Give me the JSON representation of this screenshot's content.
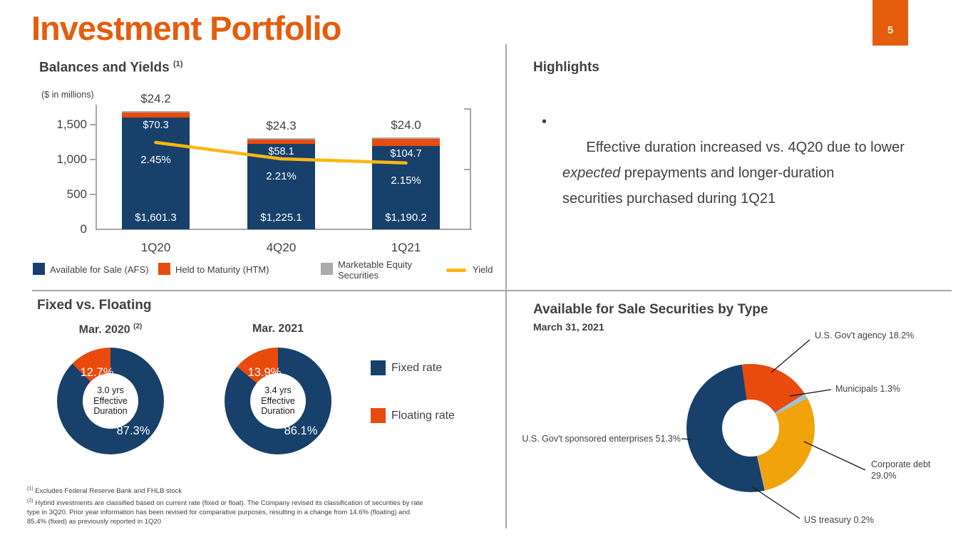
{
  "header": {
    "title": "Investment Portfolio",
    "page_number": "5"
  },
  "colors": {
    "accent": "#E45D0D",
    "navy": "#17406B",
    "series_orange": "#E84B0D",
    "gray_cap": "#ABABAB",
    "gold": "#FFB612",
    "pie_gold": "#F0A30A",
    "light_blue": "#9CC3DE",
    "treasury_gray": "#BFBFBF",
    "text_dark": "#404040",
    "line_gray": "#A6A6A6",
    "page_badge_text": "#FBEFD9"
  },
  "balances": {
    "heading": "Balances and Yields",
    "heading_note": "(1)",
    "units": "($ in millions)",
    "y_ticks": [
      "1,500",
      "1,000",
      "500",
      "0"
    ],
    "x_labels": [
      "1Q20",
      "4Q20",
      "1Q21"
    ],
    "afs_labels": [
      "$1,601.3",
      "$1,225.1",
      "$1,190.2"
    ],
    "htm_labels": [
      "$70.3",
      "$58.1",
      "$104.7"
    ],
    "mes_labels": [
      "$24.2",
      "$24.3",
      "$24.0"
    ],
    "yield_labels": [
      "2.45%",
      "2.21%",
      "2.15%"
    ],
    "legend_afs": "Available for Sale (AFS)",
    "legend_htm": "Held to Maturity (HTM)",
    "legend_mes_1": "Marketable Equity",
    "legend_mes_2": "Securities",
    "legend_yield": "Yield"
  },
  "highlights": {
    "heading": "Highlights",
    "bullet_pre": "Effective duration increased vs. 4Q20 due to lower\n",
    "bullet_italic": "expected",
    "bullet_post": " prepayments and longer-duration\nsecurities purchased during 1Q21"
  },
  "fixed_floating": {
    "heading": "Fixed vs. Floating",
    "donut1_title": "Mar. 2020",
    "donut1_note": "(2)",
    "donut2_title": "Mar. 2021",
    "donut1_floating": "12.7%",
    "donut1_fixed": "87.3%",
    "donut1_center": [
      "3.0 yrs",
      "Effective",
      "Duration"
    ],
    "donut2_floating": "13.9%",
    "donut2_fixed": "86.1%",
    "donut2_center": [
      "3.4 yrs",
      "Effective",
      "Duration"
    ],
    "legend_fixed": "Fixed rate",
    "legend_floating": "Floating rate"
  },
  "afs_by_type": {
    "heading": "Available for Sale Securities by Type",
    "subheading": "March 31, 2021",
    "label_agency": "U.S. Gov't agency 18.2%",
    "label_municipals": "Municipals 1.3%",
    "label_corporate_1": "Corporate debt",
    "label_corporate_2": "29.0%",
    "label_treasury": "US treasury 0.2%",
    "label_gse": "U.S. Gov't sponsored enterprises 51.3%"
  },
  "footnotes": {
    "note1_sup": "(1)",
    "note1": " Excludes Federal Reserve Bank and FHLB stock",
    "note2_sup": "(2)",
    "note2": " Hybrid investments are classified based on current rate (fixed or float). The Company revised its classification of securities by rate\ntype in 3Q20. Prior year information has been revised for comparative purposes, resulting in a change from 14.6% (floating) and\n85.4% (fixed) as previously reported in 1Q20"
  },
  "chart_data": [
    {
      "type": "bar",
      "title": "Balances and Yields",
      "stacked": true,
      "categories": [
        "1Q20",
        "4Q20",
        "1Q21"
      ],
      "series": [
        {
          "name": "Available for Sale (AFS)",
          "values": [
            1601.3,
            1225.1,
            1190.2
          ]
        },
        {
          "name": "Held to Maturity (HTM)",
          "values": [
            70.3,
            58.1,
            104.7
          ]
        },
        {
          "name": "Marketable Equity Securities",
          "values": [
            24.2,
            24.3,
            24.0
          ]
        },
        {
          "name": "Yield",
          "type": "line",
          "axis": "secondary",
          "unit": "%",
          "values": [
            2.45,
            2.21,
            2.15
          ]
        }
      ],
      "ylabel": "$ in millions",
      "ylim": [
        0,
        1750
      ],
      "y_ticks": [
        0,
        500,
        1000,
        1500
      ],
      "legend_position": "bottom"
    },
    {
      "type": "pie",
      "title": "Fixed vs. Floating — Mar. 2020",
      "labels": [
        "Fixed rate",
        "Floating rate"
      ],
      "values": [
        87.3,
        12.7
      ],
      "center_label": "3.0 yrs Effective Duration"
    },
    {
      "type": "pie",
      "title": "Fixed vs. Floating — Mar. 2021",
      "labels": [
        "Fixed rate",
        "Floating rate"
      ],
      "values": [
        86.1,
        13.9
      ],
      "center_label": "3.4 yrs Effective Duration"
    },
    {
      "type": "pie",
      "title": "Available for Sale Securities by Type — March 31, 2021",
      "labels": [
        "U.S. Gov't agency",
        "Municipals",
        "Corporate debt",
        "US treasury",
        "U.S. Gov't sponsored enterprises"
      ],
      "values": [
        18.2,
        1.3,
        29.0,
        0.2,
        51.3
      ]
    }
  ]
}
